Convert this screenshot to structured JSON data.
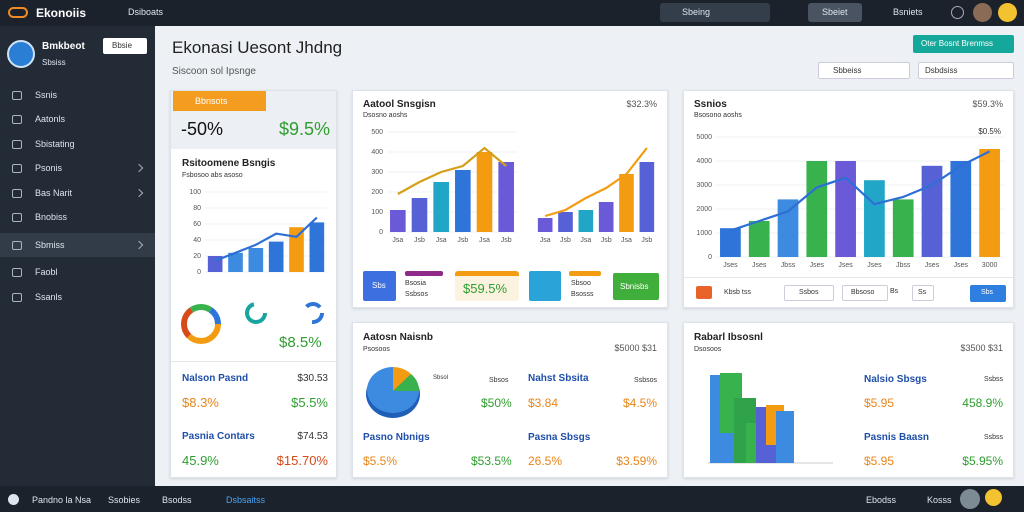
{
  "topbar": {
    "brand": "Ekonoiis",
    "nav": "Dsiboats",
    "search": "Sbeing",
    "button": "Sbeiet",
    "account": "Bsniets"
  },
  "sidebar": {
    "user": "Bmkbeot",
    "role": "Sbsiss",
    "button": "Bbsie",
    "menu": [
      "Ssnis",
      "Aatonls",
      "Sbistating",
      "Psonis",
      "Bas Narit",
      "Bnobiss",
      "Sbmiss",
      "Faobl",
      "Ssanls"
    ]
  },
  "header": {
    "title": "Ekonasi Uesont Jhdng",
    "subtitle": "Siscoon sol Ipsnge",
    "action": "Oter Bosnt Brenmss",
    "filters": [
      "Sbbeiss",
      "Dsbdsiss"
    ]
  },
  "panel1": {
    "tag": "Bbnsots",
    "change": "-50%",
    "value": "$9.5%",
    "chart_title": "Rsitoomene Bsngis",
    "chart_subtitle": "Fsbosoo abs asoso",
    "chart": {
      "ylim": [
        0,
        100
      ],
      "yticks": [
        0,
        20,
        40,
        60,
        80,
        100
      ],
      "values": [
        20,
        24,
        30,
        38,
        56,
        62
      ],
      "colors": [
        "#5661d6",
        "#3d8be0",
        "#3d8be0",
        "#2f74d8",
        "#f39c12",
        "#2f74d8"
      ],
      "line": [
        14,
        24,
        34,
        48,
        44,
        68
      ],
      "line_color": "#2e6fd6"
    },
    "donut_value": "$8.5%",
    "rows": [
      [
        "Nalson Pasnd",
        "$30.53",
        "$8.3%",
        "$5.5%"
      ],
      [
        "Pasnia Contars",
        "$74.53",
        "45.9%",
        "$15.70%"
      ]
    ]
  },
  "panel2": {
    "title": "Aatool Snsgisn",
    "value": "$32.3%",
    "subtitle": "Dsosno aoshs",
    "chart_left": {
      "ylim": [
        0,
        500
      ],
      "yticks": [
        0,
        100,
        200,
        300,
        400,
        500
      ],
      "categories": [
        "Jsa",
        "Jsb",
        "Jsa",
        "Jsb",
        "Jsa",
        "Jsb"
      ],
      "values": [
        110,
        170,
        250,
        310,
        400,
        350
      ],
      "colors": [
        "#6a5ad8",
        "#5661d6",
        "#22a6c8",
        "#2f74d8",
        "#f39c12",
        "#6a5ad8"
      ],
      "line": [
        190,
        250,
        300,
        330,
        420,
        330
      ],
      "line_color": "#d4a017"
    },
    "chart_right": {
      "ylim": [
        0,
        500
      ],
      "categories": [
        "Jsa",
        "Jsb",
        "Jsa",
        "Jsb",
        "Jsa",
        "Jsb"
      ],
      "values": [
        70,
        100,
        110,
        150,
        290,
        350
      ],
      "colors": [
        "#6a5ad8",
        "#5661d6",
        "#22a6c8",
        "#6a5ad8",
        "#f39c12",
        "#5661d6"
      ],
      "line": [
        80,
        110,
        170,
        220,
        290,
        420
      ],
      "line_color": "#f39c12"
    },
    "widgets": [
      "Sbs",
      "Bsosia",
      "Ssbsos",
      "$59.5%",
      "Sbsoo",
      "Bsosss",
      "Sbnisbs"
    ]
  },
  "panel3": {
    "title": "Ssnios",
    "value": "$59.3%",
    "subtitle": "Bsosono aoshs",
    "note": "$0.5%",
    "chart": {
      "ylim": [
        0,
        5000
      ],
      "yticks": [
        0,
        1000,
        2000,
        3000,
        4000,
        5000
      ],
      "categories": [
        "Jses",
        "Jses",
        "Jbss",
        "Jses",
        "Jses",
        "Jses",
        "Jbss",
        "Jses",
        "Jses",
        "3000"
      ],
      "values": [
        1200,
        1500,
        2400,
        4000,
        4000,
        3200,
        2400,
        3800,
        4000,
        4500
      ],
      "colors": [
        "#2f74d8",
        "#37b24d",
        "#3d8be0",
        "#37b24d",
        "#6a5ad8",
        "#22a6c8",
        "#37b24d",
        "#5661d6",
        "#2f74d8",
        "#f39c12"
      ],
      "line": [
        1100,
        1500,
        1900,
        2900,
        3300,
        2200,
        2500,
        3000,
        3800,
        4400
      ],
      "line_color": "#2e6fd6"
    },
    "toolbar": [
      "Kbsb tss",
      "Ssbos",
      "Bbsoso",
      "Bs",
      "Ss",
      "Sbs"
    ]
  },
  "panel4": {
    "title": "Aatosn Naisnb",
    "value": "$5000 $31",
    "subtitle": "Psosoos",
    "pie_label": "Sbsol",
    "items": [
      "Sbsos",
      "Nahst Sbsita",
      "Ssbsos",
      "$50%",
      "$3.84",
      "$4.5%",
      "Pasno Nbnigs",
      "Pasna Sbsgs",
      "$5.5%",
      "$53.5%",
      "26.5%",
      "$3.59%"
    ]
  },
  "panel5": {
    "title": "Rabarl Ibsosnl",
    "value": "$3500 $31",
    "subtitle": "Dsosoos",
    "items": [
      "Nalsio Sbsgs",
      "Ssbss",
      "$5.95",
      "458.9%",
      "Pasnis Baasn",
      "Ssbss",
      "$5.95",
      "$5.95%"
    ]
  },
  "footer": {
    "links": [
      "Pandno la Nsa",
      "Ssobies",
      "Bsodss",
      "Dsbsaitss"
    ],
    "right": [
      "Ebodss",
      "Kosss"
    ]
  }
}
